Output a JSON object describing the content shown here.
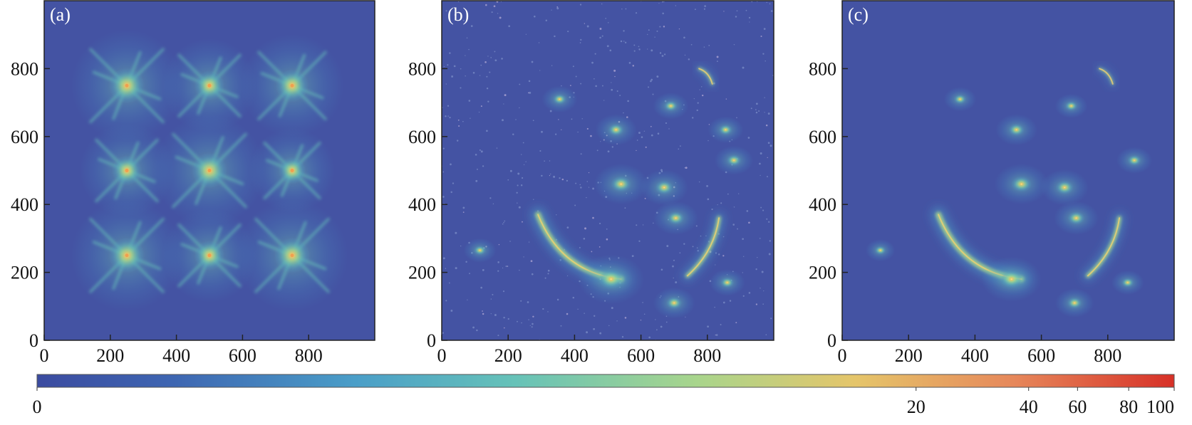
{
  "chart_data": {
    "type": "heatmap",
    "panels": [
      {
        "label": "(a)",
        "xlim": [
          0,
          1000
        ],
        "ylim": [
          0,
          1000
        ],
        "xticks": [
          0,
          200,
          400,
          600,
          800
        ],
        "yticks": [
          0,
          200,
          400,
          600,
          800
        ],
        "sources": [
          {
            "x": 250,
            "y": 750,
            "peak": 20,
            "kind": "star"
          },
          {
            "x": 500,
            "y": 750,
            "peak": 16,
            "kind": "star"
          },
          {
            "x": 750,
            "y": 750,
            "peak": 18,
            "kind": "star"
          },
          {
            "x": 250,
            "y": 500,
            "peak": 16,
            "kind": "star"
          },
          {
            "x": 500,
            "y": 500,
            "peak": 20,
            "kind": "star"
          },
          {
            "x": 750,
            "y": 500,
            "peak": 14,
            "kind": "star"
          },
          {
            "x": 250,
            "y": 250,
            "peak": 20,
            "kind": "star"
          },
          {
            "x": 500,
            "y": 250,
            "peak": 16,
            "kind": "star"
          },
          {
            "x": 750,
            "y": 250,
            "peak": 20,
            "kind": "star"
          }
        ]
      },
      {
        "label": "(b)",
        "xlim": [
          0,
          1000
        ],
        "ylim": [
          0,
          1000
        ],
        "xticks": [
          0,
          200,
          400,
          600,
          800
        ],
        "yticks": [
          0,
          200,
          400,
          600,
          800
        ],
        "sources": [
          {
            "x": 540,
            "y": 460,
            "peak": 12,
            "kind": "blob"
          },
          {
            "x": 670,
            "y": 450,
            "peak": 10,
            "kind": "blob"
          },
          {
            "x": 705,
            "y": 360,
            "peak": 9,
            "kind": "blob"
          },
          {
            "x": 525,
            "y": 620,
            "peak": 8,
            "kind": "blob"
          },
          {
            "x": 390,
            "y": 240,
            "peak": 14,
            "kind": "arc"
          },
          {
            "x": 510,
            "y": 180,
            "peak": 16,
            "kind": "blob"
          },
          {
            "x": 800,
            "y": 270,
            "peak": 10,
            "kind": "arc"
          },
          {
            "x": 880,
            "y": 530,
            "peak": 7,
            "kind": "blob"
          },
          {
            "x": 700,
            "y": 110,
            "peak": 8,
            "kind": "blob"
          },
          {
            "x": 860,
            "y": 170,
            "peak": 6,
            "kind": "blob"
          },
          {
            "x": 690,
            "y": 690,
            "peak": 6,
            "kind": "blob"
          },
          {
            "x": 355,
            "y": 710,
            "peak": 6,
            "kind": "blob"
          },
          {
            "x": 855,
            "y": 620,
            "peak": 6,
            "kind": "blob"
          },
          {
            "x": 800,
            "y": 770,
            "peak": 6,
            "kind": "arc"
          },
          {
            "x": 115,
            "y": 265,
            "peak": 5,
            "kind": "blob"
          }
        ]
      },
      {
        "label": "(c)",
        "xlim": [
          0,
          1000
        ],
        "ylim": [
          0,
          1000
        ],
        "xticks": [
          0,
          200,
          400,
          600,
          800
        ],
        "yticks": [
          0,
          200,
          400,
          600,
          800
        ],
        "sources": [
          {
            "x": 540,
            "y": 460,
            "peak": 12,
            "kind": "blob"
          },
          {
            "x": 670,
            "y": 450,
            "peak": 10,
            "kind": "blob"
          },
          {
            "x": 705,
            "y": 360,
            "peak": 9,
            "kind": "blob"
          },
          {
            "x": 525,
            "y": 620,
            "peak": 8,
            "kind": "blob"
          },
          {
            "x": 390,
            "y": 240,
            "peak": 14,
            "kind": "arc"
          },
          {
            "x": 510,
            "y": 180,
            "peak": 14,
            "kind": "blob"
          },
          {
            "x": 790,
            "y": 260,
            "peak": 10,
            "kind": "arc"
          },
          {
            "x": 880,
            "y": 530,
            "peak": 6,
            "kind": "blob"
          },
          {
            "x": 700,
            "y": 110,
            "peak": 7,
            "kind": "blob"
          },
          {
            "x": 860,
            "y": 170,
            "peak": 5,
            "kind": "blob"
          },
          {
            "x": 690,
            "y": 690,
            "peak": 5,
            "kind": "blob"
          },
          {
            "x": 355,
            "y": 710,
            "peak": 5,
            "kind": "blob"
          },
          {
            "x": 800,
            "y": 760,
            "peak": 5,
            "kind": "arc"
          },
          {
            "x": 115,
            "y": 265,
            "peak": 4,
            "kind": "blob"
          }
        ]
      }
    ],
    "colorbar": {
      "scale": "log-like",
      "ticks": [
        "0",
        "20",
        "40",
        "60",
        "80",
        "100"
      ],
      "tick_values": [
        0,
        20,
        40,
        60,
        80,
        100
      ],
      "colors": [
        "#3b4ba0",
        "#3e66b2",
        "#4a9ec8",
        "#66c2b8",
        "#a8d58c",
        "#e5c56a",
        "#e6875a",
        "#d73027"
      ],
      "background_color": "#4453a3"
    }
  }
}
